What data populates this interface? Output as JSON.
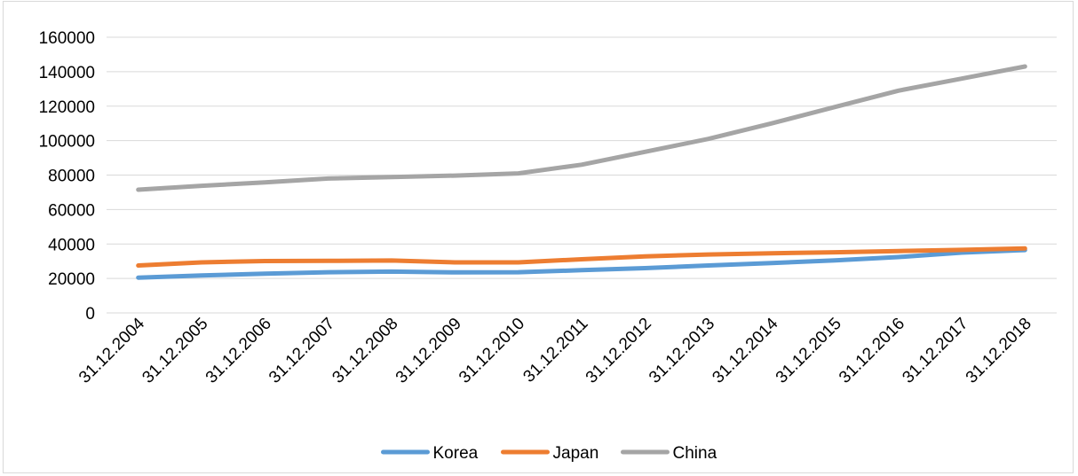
{
  "chart_data": {
    "type": "line",
    "title": "",
    "xlabel": "",
    "ylabel": "",
    "ylim": [
      0,
      160000
    ],
    "yticks": [
      0,
      20000,
      40000,
      60000,
      80000,
      100000,
      120000,
      140000,
      160000
    ],
    "grid": "horizontal",
    "legend_position": "bottom",
    "categories": [
      "31.12.2004",
      "31.12.2005",
      "31.12.2006",
      "31.12.2007",
      "31.12.2008",
      "31.12.2009",
      "31.12.2010",
      "31.12.2011",
      "31.12.2012",
      "31.12.2013",
      "31.12.2014",
      "31.12.2015",
      "31.12.2016",
      "31.12.2017",
      "31.12.2018"
    ],
    "series": [
      {
        "name": "Korea",
        "color": "#5B9BD5",
        "values": [
          20500,
          21700,
          22800,
          23600,
          24000,
          23500,
          23600,
          24800,
          26000,
          27500,
          28900,
          30500,
          32400,
          35000,
          36500
        ]
      },
      {
        "name": "Japan",
        "color": "#ED7D31",
        "values": [
          27500,
          29300,
          30100,
          30200,
          30400,
          29300,
          29300,
          31100,
          32800,
          33900,
          34600,
          35200,
          35900,
          36600,
          37400
        ]
      },
      {
        "name": "China",
        "color": "#A5A5A5",
        "values": [
          71500,
          73800,
          75800,
          78000,
          78800,
          79700,
          81000,
          86000,
          93500,
          101000,
          110000,
          119500,
          129000,
          136000,
          143000
        ]
      }
    ]
  }
}
